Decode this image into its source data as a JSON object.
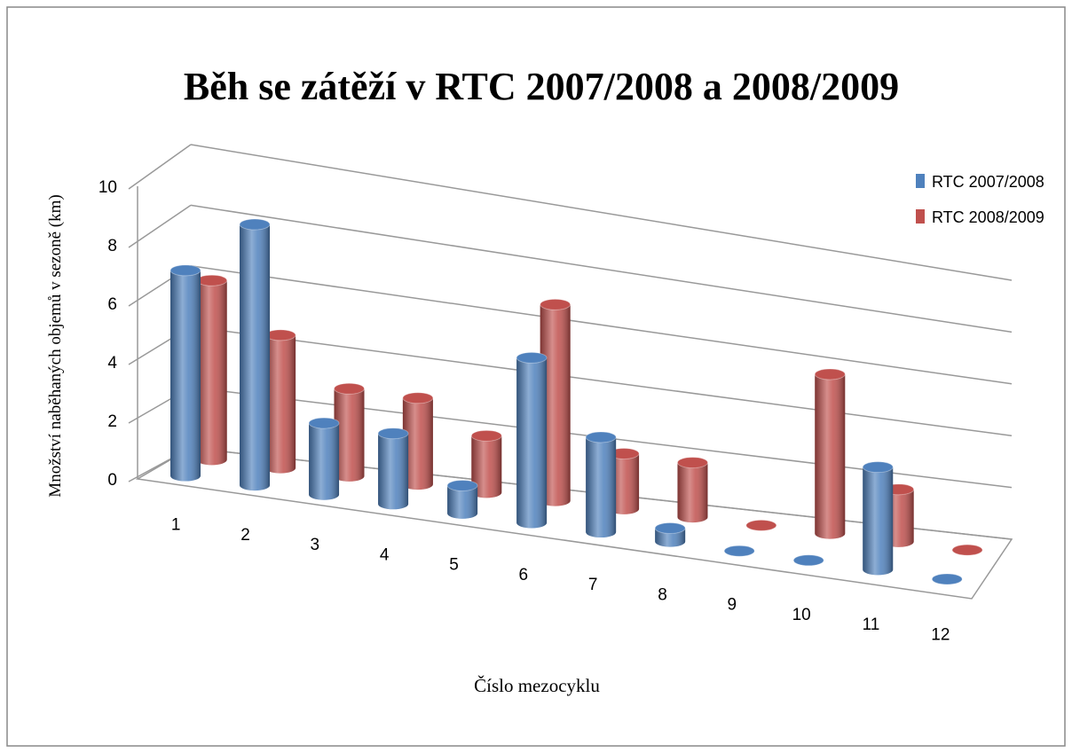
{
  "chart_data": {
    "type": "bar3d",
    "title": "Běh se zátěží v RTC 2007/2008 a 2008/2009",
    "y_label": "Množství naběhaných objemů v sezoně (km)",
    "x_label": "Číslo mezocyklu",
    "categories": [
      "1",
      "2",
      "3",
      "4",
      "5",
      "6",
      "7",
      "8",
      "9",
      "10",
      "11",
      "12"
    ],
    "series": [
      {
        "name": "RTC 2007/2008",
        "color": "#4f81bd",
        "values": [
          7,
          9,
          2.5,
          2.5,
          1,
          6,
          3.5,
          0.5,
          0,
          0,
          4,
          0
        ]
      },
      {
        "name": "RTC 2008/2009",
        "color": "#c0504d",
        "values": [
          6,
          4.5,
          3,
          3,
          2,
          7,
          2,
          2,
          0,
          6,
          2,
          0
        ]
      }
    ],
    "ylim": [
      0,
      10
    ],
    "yticks": [
      0,
      2,
      4,
      6,
      8,
      10
    ],
    "grid": true,
    "legend": "top-right"
  }
}
